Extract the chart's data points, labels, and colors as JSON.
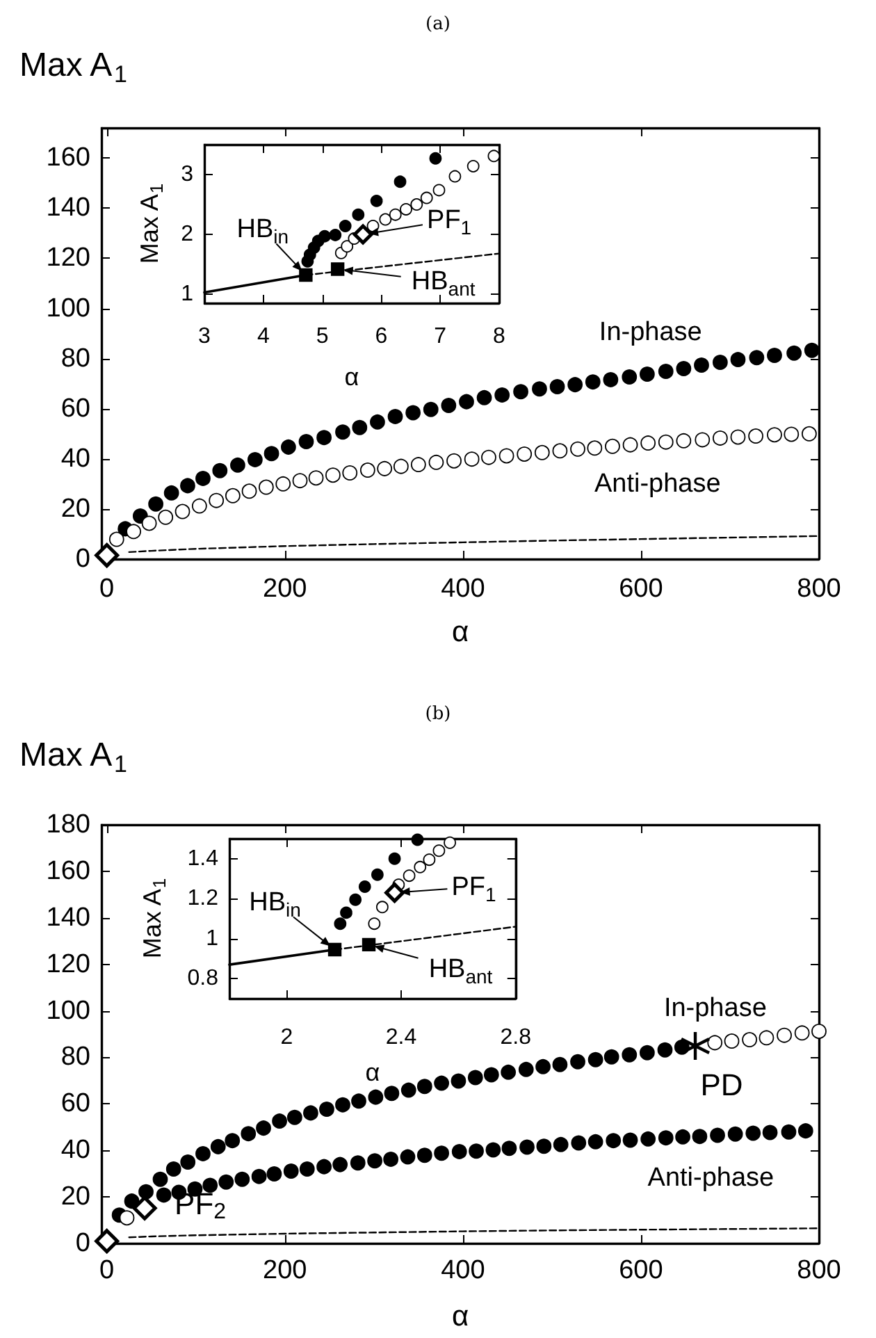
{
  "chart_data": [
    {
      "type": "scatter",
      "title": "(a)",
      "xlabel": "α",
      "ylabel": "Max A$_{1}$",
      "xlim": [
        -6,
        800
      ],
      "ylim": [
        0,
        172
      ],
      "xticks": [
        0,
        200,
        400,
        600,
        800
      ],
      "yticks": [
        0,
        20,
        40,
        60,
        80,
        100,
        120,
        140,
        160
      ],
      "series": [
        {
          "type": "line",
          "marker": "none",
          "line_style": "dashed",
          "color": "#000000",
          "x": [
            25,
            50,
            100,
            200,
            300,
            400,
            500,
            600,
            700,
            800
          ],
          "values": [
            2.8,
            3.3,
            4.1,
            5.2,
            6,
            6.7,
            7.4,
            8,
            8.6,
            9.2
          ]
        },
        {
          "name": "In-phase",
          "marker": "circle",
          "color": "#000000",
          "x": [
            20.7,
            37.6,
            55,
            72.6,
            90.8,
            108,
            127,
            147,
            166.5,
            185,
            204,
            224,
            244,
            265,
            284,
            304,
            324,
            344,
            364,
            384,
            404,
            424,
            444,
            465,
            486,
            506,
            526,
            546,
            566,
            587,
            607,
            628,
            648,
            668,
            689,
            709,
            730,
            750,
            772,
            792
          ],
          "values": [
            12.1,
            17.2,
            22,
            26.4,
            29.3,
            32.2,
            35.3,
            37.5,
            39.7,
            42.1,
            44.7,
            46.9,
            48.5,
            50.7,
            52.5,
            54.7,
            56.9,
            58.4,
            59.7,
            61.3,
            62.8,
            64.4,
            65.5,
            66.8,
            67.9,
            68.8,
            69.6,
            70.7,
            71.6,
            72.7,
            73.8,
            74.9,
            76,
            77.4,
            78.5,
            79.6,
            80.4,
            81.3,
            82.2,
            83.3
          ]
        },
        {
          "name": "Anti-phase",
          "marker": "circle",
          "color": "#ffffff",
          "x": [
            11,
            30,
            47.6,
            66,
            85,
            104,
            123,
            141.5,
            160,
            179,
            198,
            217,
            235,
            254,
            273,
            293,
            312,
            330.5,
            350,
            370,
            390,
            410,
            429,
            449,
            469,
            489,
            509,
            529,
            548,
            568,
            588,
            608,
            628,
            648,
            669,
            689,
            709,
            729,
            750,
            769,
            789
          ],
          "values": [
            7.9,
            11,
            14.3,
            16.7,
            19,
            21.2,
            23.4,
            25.3,
            27.1,
            28.7,
            30,
            31.3,
            32.4,
            33.5,
            34.4,
            35.5,
            36.1,
            37,
            37.7,
            38.6,
            39.2,
            39.9,
            40.6,
            41.2,
            41.9,
            42.5,
            43.2,
            43.9,
            44.3,
            45,
            45.6,
            46.3,
            46.7,
            47.2,
            47.6,
            48.3,
            48.7,
            49.1,
            49.6,
            49.8,
            50
          ]
        },
        {
          "marker": "diamond",
          "color": "#ffffff",
          "x": [
            0
          ],
          "values": [
            1.5
          ]
        }
      ]
    },
    {
      "type": "scatter",
      "xlabel": "α",
      "ylabel": "Max A$_{1}$",
      "xlim": [
        3,
        8
      ],
      "ylim": [
        0.85,
        3.5
      ],
      "xticks": [
        3,
        4,
        5,
        6,
        7,
        8
      ],
      "yticks": [
        1,
        2,
        3
      ],
      "annotations": [
        {
          "text": "HB$_{in}$",
          "x": 4.72,
          "y": 1.32
        },
        {
          "text": "HB$_{ant}$",
          "x": 5.26,
          "y": 1.42
        },
        {
          "text": "PF$_{1}$",
          "x": 5.69,
          "y": 2.0
        }
      ],
      "series": [
        {
          "type": "line",
          "marker": "none",
          "line_style": "solid",
          "color": "#000000",
          "x": [
            3,
            4.72
          ],
          "values": [
            1.03,
            1.32
          ]
        },
        {
          "type": "line",
          "marker": "none",
          "line_style": "dashed",
          "color": "#000000",
          "x": [
            4.72,
            8
          ],
          "values": [
            1.32,
            1.68
          ]
        },
        {
          "marker": "circle",
          "color": "#000000",
          "x": [
            4.75,
            4.79,
            4.86,
            4.93,
            5.04,
            5.22,
            5.39,
            5.61,
            5.92,
            6.32,
            6.92
          ],
          "values": [
            1.55,
            1.66,
            1.78,
            1.89,
            1.97,
            1.99,
            2.14,
            2.33,
            2.56,
            2.88,
            3.27
          ]
        },
        {
          "marker": "circle",
          "color": "#ffffff",
          "x": [
            5.32,
            5.42,
            5.54,
            5.86,
            6.07,
            6.24,
            6.42,
            6.6,
            6.77,
            6.98,
            7.25,
            7.56,
            7.91
          ],
          "values": [
            1.69,
            1.8,
            1.93,
            2.14,
            2.25,
            2.33,
            2.42,
            2.5,
            2.61,
            2.74,
            2.97,
            3.14,
            3.31
          ]
        },
        {
          "marker": "square",
          "color": "#000000",
          "x": [
            4.72,
            5.26
          ],
          "values": [
            1.32,
            1.42
          ]
        },
        {
          "marker": "diamond",
          "color": "#ffffff",
          "x": [
            5.69
          ],
          "values": [
            2.0
          ]
        }
      ]
    },
    {
      "type": "scatter",
      "title": "(b)",
      "xlabel": "α",
      "ylabel": "Max A$_{1}$",
      "xlim": [
        -6,
        800
      ],
      "ylim": [
        0,
        180
      ],
      "xticks": [
        0,
        200,
        400,
        600,
        800
      ],
      "yticks": [
        0,
        20,
        40,
        60,
        80,
        100,
        120,
        140,
        160,
        180
      ],
      "annotations": [
        {
          "text": "PF$_{2}$",
          "x": 42.5,
          "y": 15.2
        },
        {
          "text": "PD",
          "x": 661,
          "y": 84.9
        }
      ],
      "series": [
        {
          "type": "line",
          "marker": "none",
          "line_style": "dashed",
          "color": "#000000",
          "x": [
            25,
            50,
            100,
            200,
            300,
            400,
            500,
            600,
            700,
            800
          ],
          "values": [
            2.6,
            3,
            3.5,
            4.2,
            4.7,
            5.2,
            5.6,
            5.9,
            6.2,
            6.5
          ]
        },
        {
          "name": "In-phase",
          "marker": "circle",
          "color": "#000000",
          "x": [
            14,
            28,
            44,
            60,
            75,
            91,
            108,
            125,
            141,
            159,
            176,
            194,
            211,
            229,
            247,
            265,
            283,
            302,
            320,
            339,
            357,
            376,
            395,
            414,
            432,
            451,
            471,
            490,
            509,
            529,
            549,
            567,
            587,
            607,
            627,
            646
          ],
          "values": [
            12.2,
            18.2,
            22.2,
            27.6,
            32,
            35,
            38.6,
            41.6,
            44.2,
            47.2,
            49.6,
            52.6,
            54.2,
            56.1,
            57.7,
            59.6,
            61.2,
            62.9,
            64.5,
            65.9,
            67.5,
            68.9,
            69.8,
            71.3,
            72.5,
            73.6,
            74.8,
            76,
            76.9,
            78.1,
            79,
            80.2,
            81.1,
            82,
            83.2,
            84.4
          ]
        },
        {
          "marker": "circle",
          "color": "#ffffff",
          "x": [
            683,
            702,
            722,
            741,
            761,
            781,
            800
          ],
          "values": [
            86.3,
            87,
            87.6,
            88.4,
            89.5,
            90.5,
            91.2
          ]
        },
        {
          "marker": "circle",
          "color": "#ffffff",
          "x": [
            22.5
          ],
          "values": [
            11
          ]
        },
        {
          "name": "Anti-phase",
          "marker": "circle",
          "color": "#000000",
          "x": [
            64,
            81,
            99,
            116,
            134,
            152,
            171,
            188,
            207,
            225,
            244,
            262,
            282,
            301,
            319,
            338,
            357,
            376,
            396,
            415,
            434,
            452,
            472,
            491,
            510,
            530,
            549,
            569,
            588,
            608,
            628,
            647,
            666,
            686,
            706,
            726,
            745,
            766,
            785
          ],
          "values": [
            20.8,
            22,
            23.4,
            25,
            26.4,
            27.6,
            28.8,
            29.9,
            31.1,
            32,
            33,
            33.9,
            34.6,
            35.5,
            36.2,
            37.2,
            37.9,
            38.8,
            39.5,
            39.7,
            40.2,
            40.9,
            41.4,
            41.8,
            42.5,
            43.2,
            43.7,
            44.2,
            44.4,
            44.9,
            45.4,
            45.8,
            46,
            46.5,
            47,
            47.4,
            47.7,
            47.9,
            48.4
          ]
        },
        {
          "marker": "diamond",
          "color": "#ffffff",
          "x": [
            0,
            42.5
          ],
          "values": [
            1,
            15.2
          ]
        },
        {
          "marker": "cross",
          "color": "#000000",
          "x": [
            661
          ],
          "values": [
            84.9
          ]
        }
      ]
    },
    {
      "type": "scatter",
      "xlabel": "α",
      "ylabel": "Max A$_{1}$",
      "xlim": [
        1.8,
        2.8
      ],
      "ylim": [
        0.7,
        1.5
      ],
      "xticks": [
        2,
        2.4,
        2.8
      ],
      "yticks": [
        0.8,
        1,
        1.2,
        1.4
      ],
      "annotations": [
        {
          "text": "HB$_{in}$",
          "x": 2.168,
          "y": 0.945
        },
        {
          "text": "HB$_{ant}$",
          "x": 2.287,
          "y": 0.97
        },
        {
          "text": "PF$_{1}$",
          "x": 2.377,
          "y": 1.23
        }
      ],
      "series": [
        {
          "type": "line",
          "marker": "none",
          "line_style": "solid",
          "color": "#000000",
          "x": [
            1.8,
            2.168
          ],
          "values": [
            0.87,
            0.945
          ]
        },
        {
          "type": "line",
          "marker": "none",
          "line_style": "dashed",
          "color": "#000000",
          "x": [
            2.168,
            2.8
          ],
          "values": [
            0.945,
            1.06
          ]
        },
        {
          "marker": "circle",
          "color": "#000000",
          "x": [
            2.187,
            2.208,
            2.24,
            2.273,
            2.317,
            2.377,
            2.457
          ],
          "values": [
            1.075,
            1.13,
            1.195,
            1.26,
            1.32,
            1.4,
            1.495
          ]
        },
        {
          "marker": "circle",
          "color": "#ffffff",
          "x": [
            2.306,
            2.334,
            2.391,
            2.428,
            2.466,
            2.498,
            2.532,
            2.57
          ],
          "values": [
            1.075,
            1.158,
            1.27,
            1.315,
            1.358,
            1.395,
            1.44,
            1.48
          ]
        },
        {
          "marker": "square",
          "color": "#000000",
          "x": [
            2.168,
            2.287
          ],
          "values": [
            0.945,
            0.97
          ]
        },
        {
          "marker": "diamond",
          "color": "#ffffff",
          "x": [
            2.377
          ],
          "values": [
            1.23
          ]
        }
      ]
    }
  ]
}
